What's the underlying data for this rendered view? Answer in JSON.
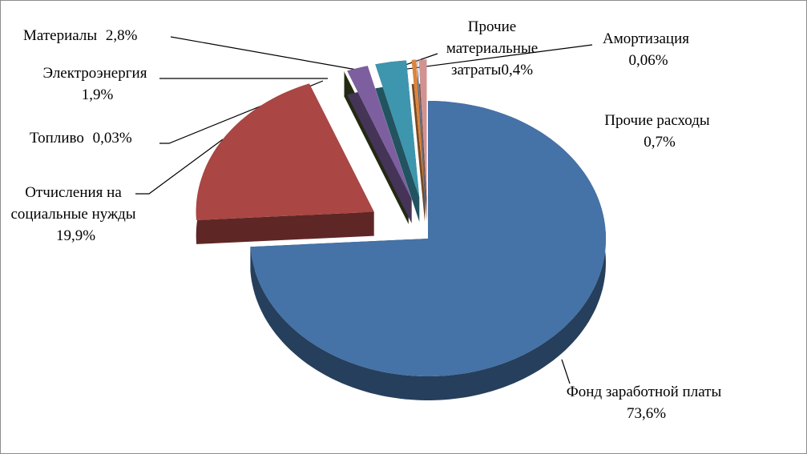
{
  "chart_data": {
    "type": "pie3d",
    "categories": [
      "Фонд заработной платы",
      "Отчисления на социальные нужды",
      "Топливо",
      "Электроэнергия",
      "Материалы",
      "Прочие материальные затраты",
      "Амортизация",
      "Прочие расходы"
    ],
    "values": [
      73.6,
      19.9,
      0.03,
      1.9,
      2.8,
      0.4,
      0.06,
      0.7
    ],
    "value_labels": [
      "73,6%",
      "19,9%",
      "0,03%",
      "1,9%",
      "2,8%",
      "0,4%",
      "0,06%",
      "0,7%"
    ],
    "colors": [
      "#4572a7",
      "#aa4643",
      "#3f4d22",
      "#7d5fa0",
      "#3d96ae",
      "#db843d",
      "#93a9cf",
      "#d19392"
    ]
  }
}
